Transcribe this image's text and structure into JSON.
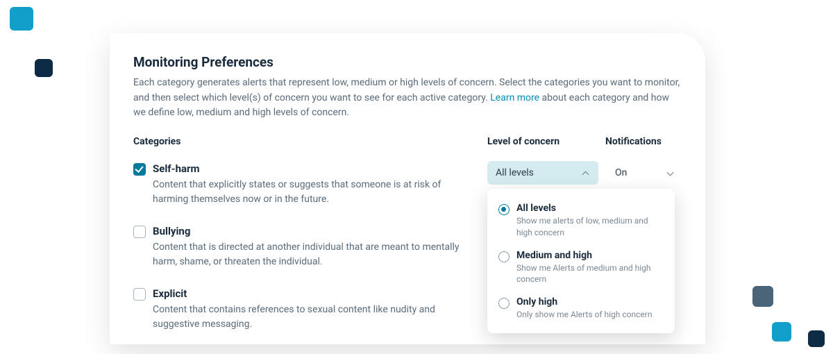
{
  "colors": {
    "accent_teal": "#129fc9",
    "accent_navy": "#0d2b45",
    "accent_slate": "#4a647a",
    "brand_cyan": "#007a9c",
    "link": "#0090b8",
    "text_primary": "#1a2b3c",
    "text_secondary": "#5a6b7b",
    "dropdown_open_bg": "#d4ecef"
  },
  "header": {
    "title": "Monitoring Preferences",
    "intro_before_link": "Each category generates alerts that represent low, medium or high levels of concern. Select the categories you want to monitor, and then select which level(s) of concern you want to see for each active category. ",
    "link_text": "Learn more",
    "intro_after_link": " about each category and how we define low, medium and high levels of concern."
  },
  "column_headers": {
    "categories": "Categories",
    "level": "Level of concern",
    "notifications": "Notifications"
  },
  "categories": [
    {
      "name": "Self-harm",
      "description": "Content that explicitly states or suggests that someone is at risk of harming themselves now or in the future.",
      "checked": true,
      "level_value": "All levels",
      "level_open": true,
      "notification_value": "On"
    },
    {
      "name": "Bullying",
      "description": "Content that is directed at another individual that are meant to mentally harm, shame, or threaten the individual.",
      "checked": false,
      "level_value": "",
      "level_open": false,
      "notification_value": ""
    },
    {
      "name": "Explicit",
      "description": "Content that contains references to sexual content like nudity and suggestive messaging.",
      "checked": false,
      "level_value": "",
      "level_open": false,
      "notification_value": ""
    }
  ],
  "level_options": [
    {
      "title": "All levels",
      "desc": "Show me alerts of low, medium and high concern",
      "selected": true
    },
    {
      "title": "Medium and high",
      "desc": "Show me Alerts of medium and high concern",
      "selected": false
    },
    {
      "title": "Only high",
      "desc": "Only show me Alerts of high concern",
      "selected": false
    }
  ]
}
